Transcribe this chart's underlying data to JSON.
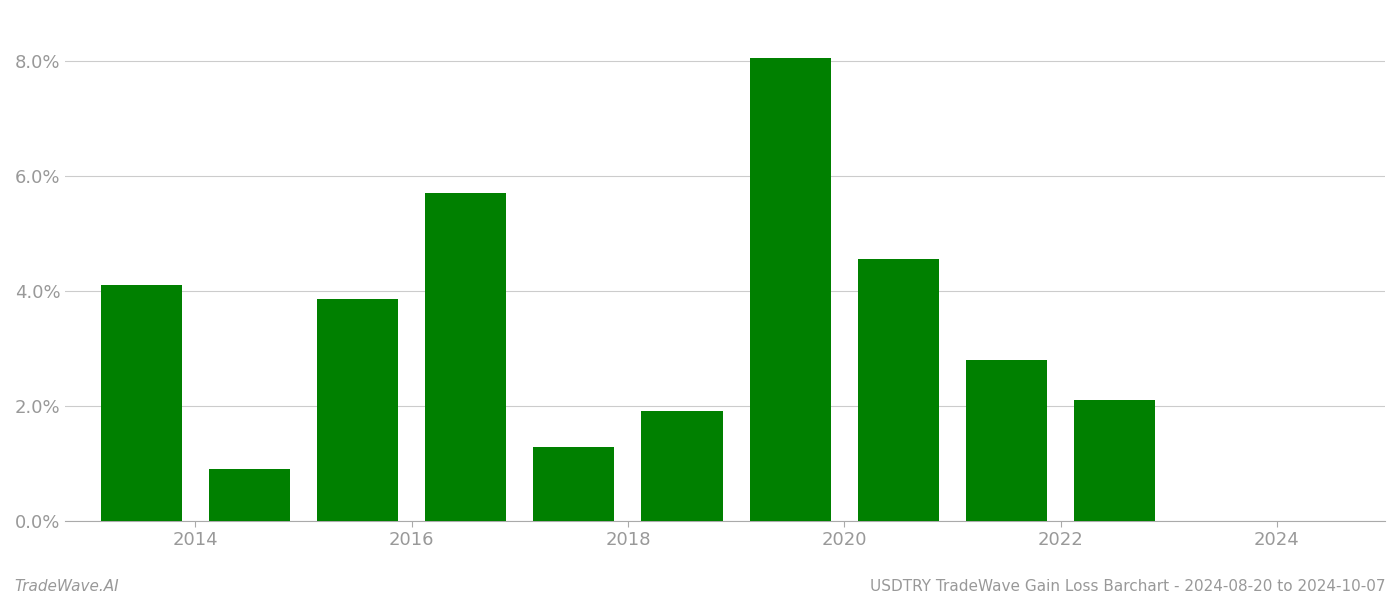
{
  "years": [
    2013,
    2014,
    2015,
    2016,
    2017,
    2018,
    2019,
    2020,
    2021,
    2022,
    2023
  ],
  "values": [
    0.041,
    0.009,
    0.0385,
    0.057,
    0.0128,
    0.019,
    0.0805,
    0.0455,
    0.028,
    0.021,
    0.0
  ],
  "bar_color": "#008000",
  "background_color": "#ffffff",
  "footer_left": "TradeWave.AI",
  "footer_right": "USDTRY TradeWave Gain Loss Barchart - 2024-08-20 to 2024-10-07",
  "ylim": [
    0,
    0.088
  ],
  "yticks": [
    0.0,
    0.02,
    0.04,
    0.06,
    0.08
  ],
  "ytick_labels": [
    "0.0%",
    "2.0%",
    "4.0%",
    "6.0%",
    "8.0%"
  ],
  "xtick_positions": [
    2013.5,
    2015.5,
    2017.5,
    2019.5,
    2021.5,
    2023.5
  ],
  "xtick_labels": [
    "2014",
    "2016",
    "2018",
    "2020",
    "2022",
    "2024"
  ],
  "xlim": [
    2012.3,
    2024.5
  ],
  "bar_width": 0.75,
  "grid_color": "#cccccc",
  "tick_color": "#999999",
  "footer_fontsize": 11,
  "tick_fontsize": 13
}
